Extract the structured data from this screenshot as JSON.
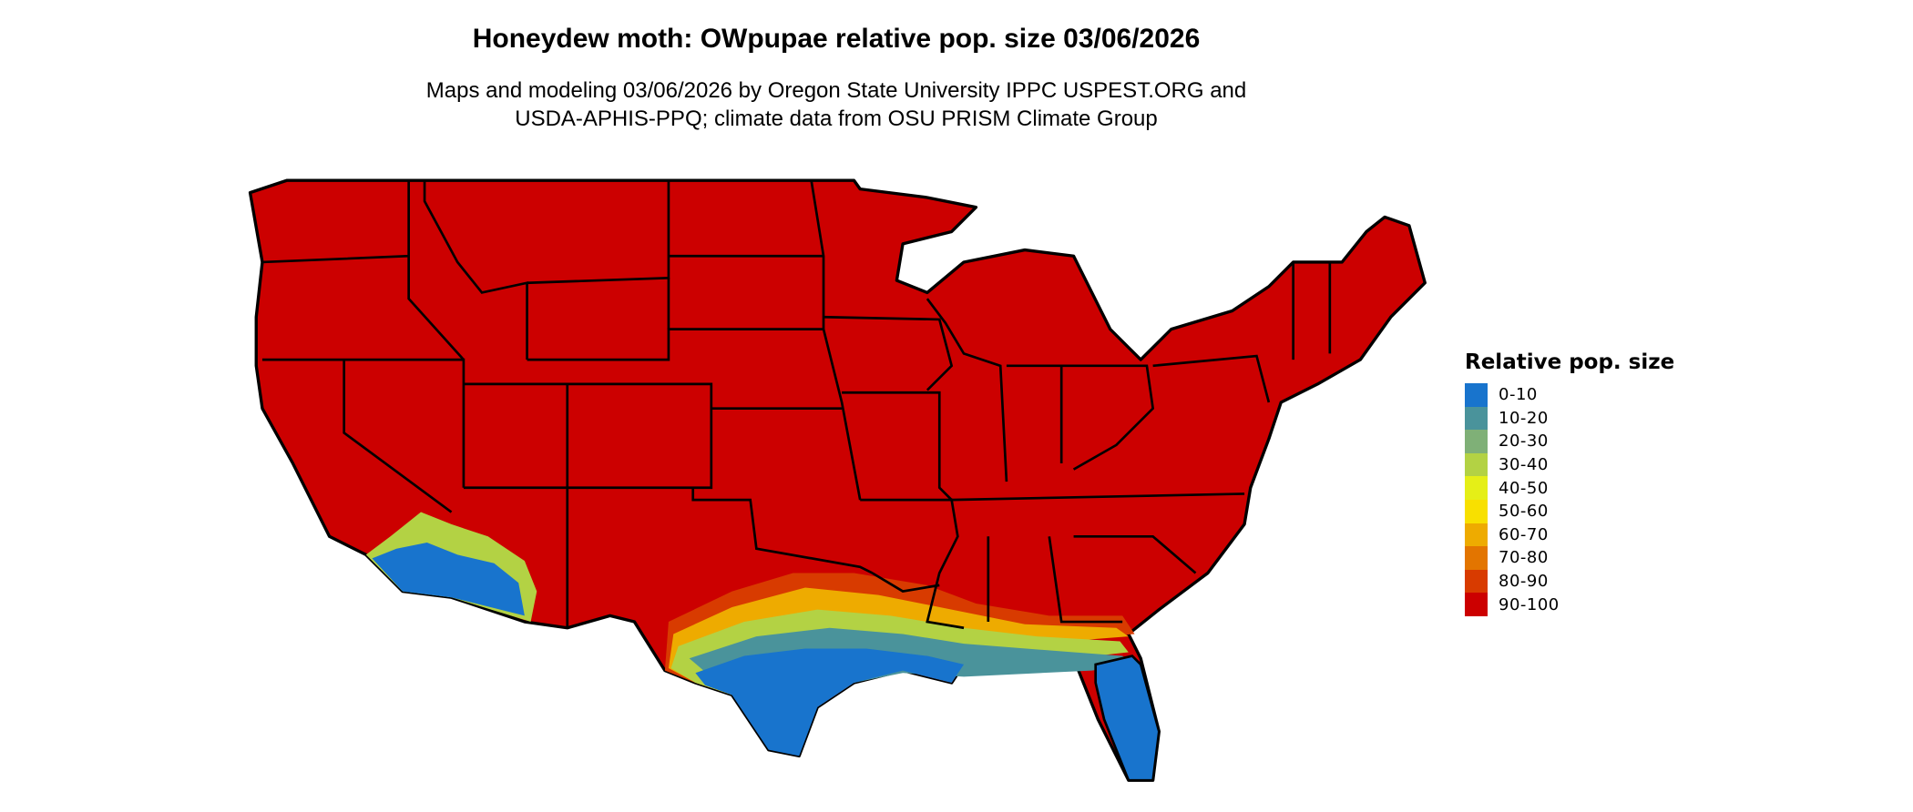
{
  "title": "Honeydew moth: OWpupae relative pop. size 03/06/2026",
  "subtitle_line1": "Maps and modeling 03/06/2026 by Oregon State University IPPC USPEST.ORG and",
  "subtitle_line2": "USDA-APHIS-PPQ; climate data from OSU PRISM Climate Group",
  "legend": {
    "title": "Relative pop. size",
    "items": [
      {
        "label": "0-10",
        "color": "#1874cd"
      },
      {
        "label": "10-20",
        "color": "#4a939b"
      },
      {
        "label": "20-30",
        "color": "#7fb077"
      },
      {
        "label": "30-40",
        "color": "#b3d244"
      },
      {
        "label": "40-50",
        "color": "#e5ef17"
      },
      {
        "label": "50-60",
        "color": "#f8e000"
      },
      {
        "label": "60-70",
        "color": "#eeab00"
      },
      {
        "label": "70-80",
        "color": "#e37500"
      },
      {
        "label": "80-90",
        "color": "#d83b00"
      },
      {
        "label": "90-100",
        "color": "#cc0000"
      }
    ]
  }
}
